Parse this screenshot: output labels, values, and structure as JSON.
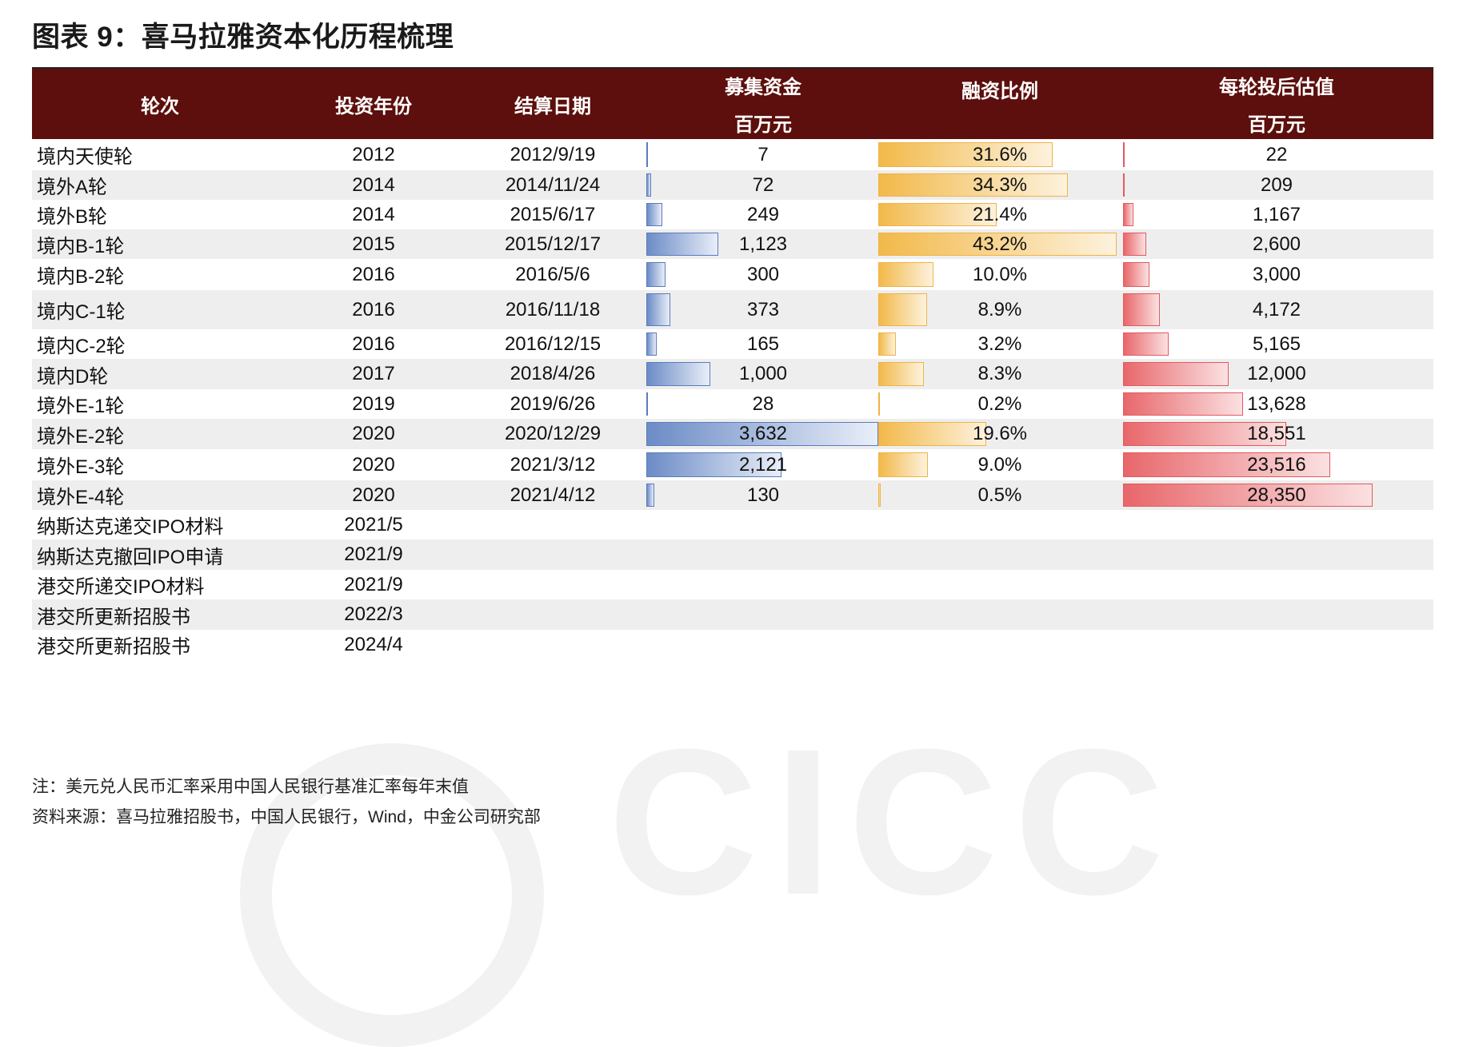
{
  "title": "图表 9：喜马拉雅资本化历程梳理",
  "watermark": "CICC",
  "colors": {
    "header_bg": "#5c0f0c",
    "blue_bar": "#6c8cc6",
    "orange_bar": "#f2b94a",
    "red_bar": "#e8676b"
  },
  "headers": {
    "round": "轮次",
    "year": "投资年份",
    "date": "结算日期",
    "raised": "募集资金",
    "raised_unit": "百万元",
    "ratio": "融资比例",
    "valuation": "每轮投后估值",
    "valuation_unit": "百万元"
  },
  "rows": [
    {
      "round": "境内天使轮",
      "year": "2012",
      "date": "2012/9/19",
      "raised": "7",
      "raised_value": 7,
      "ratio": "31.6%",
      "ratio_value": 31.6,
      "valuation": "22",
      "valuation_value": 22
    },
    {
      "round": "境外A轮",
      "year": "2014",
      "date": "2014/11/24",
      "raised": "72",
      "raised_value": 72,
      "ratio": "34.3%",
      "ratio_value": 34.3,
      "valuation": "209",
      "valuation_value": 209
    },
    {
      "round": "境外B轮",
      "year": "2014",
      "date": "2015/6/17",
      "raised": "249",
      "raised_value": 249,
      "ratio": "21.4%",
      "ratio_value": 21.4,
      "valuation": "1,167",
      "valuation_value": 1167
    },
    {
      "round": "境内B-1轮",
      "year": "2015",
      "date": "2015/12/17",
      "raised": "1,123",
      "raised_value": 1123,
      "ratio": "43.2%",
      "ratio_value": 43.2,
      "valuation": "2,600",
      "valuation_value": 2600
    },
    {
      "round": "境内B-2轮",
      "year": "2016",
      "date": "2016/5/6",
      "raised": "300",
      "raised_value": 300,
      "ratio": "10.0%",
      "ratio_value": 10.0,
      "valuation": "3,000",
      "valuation_value": 3000
    },
    {
      "round": "境内C-1轮",
      "year": "2016",
      "date": "2016/11/18",
      "raised": "373",
      "raised_value": 373,
      "ratio": "8.9%",
      "ratio_value": 8.9,
      "valuation": "4,172",
      "valuation_value": 4172
    },
    {
      "round": "境内C-2轮",
      "year": "2016",
      "date": "2016/12/15",
      "raised": "165",
      "raised_value": 165,
      "ratio": "3.2%",
      "ratio_value": 3.2,
      "valuation": "5,165",
      "valuation_value": 5165
    },
    {
      "round": "境内D轮",
      "year": "2017",
      "date": "2018/4/26",
      "raised": "1,000",
      "raised_value": 1000,
      "ratio": "8.3%",
      "ratio_value": 8.3,
      "valuation": "12,000",
      "valuation_value": 12000
    },
    {
      "round": "境外E-1轮",
      "year": "2019",
      "date": "2019/6/26",
      "raised": "28",
      "raised_value": 28,
      "ratio": "0.2%",
      "ratio_value": 0.2,
      "valuation": "13,628",
      "valuation_value": 13628
    },
    {
      "round": "境外E-2轮",
      "year": "2020",
      "date": "2020/12/29",
      "raised": "3,632",
      "raised_value": 3632,
      "ratio": "19.6%",
      "ratio_value": 19.6,
      "valuation": "18,551",
      "valuation_value": 18551
    },
    {
      "round": "境外E-3轮",
      "year": "2020",
      "date": "2021/3/12",
      "raised": "2,121",
      "raised_value": 2121,
      "ratio": "9.0%",
      "ratio_value": 9.0,
      "valuation": "23,516",
      "valuation_value": 23516
    },
    {
      "round": "境外E-4轮",
      "year": "2020",
      "date": "2021/4/12",
      "raised": "130",
      "raised_value": 130,
      "ratio": "0.5%",
      "ratio_value": 0.5,
      "valuation": "28,350",
      "valuation_value": 28350
    },
    {
      "round": "纳斯达克递交IPO材料",
      "year": "2021/5",
      "date": "",
      "raised": "",
      "ratio": "",
      "valuation": ""
    },
    {
      "round": "纳斯达克撤回IPO申请",
      "year": "2021/9",
      "date": "",
      "raised": "",
      "ratio": "",
      "valuation": ""
    },
    {
      "round": "港交所递交IPO材料",
      "year": "2021/9",
      "date": "",
      "raised": "",
      "ratio": "",
      "valuation": ""
    },
    {
      "round": "港交所更新招股书",
      "year": "2022/3",
      "date": "",
      "raised": "",
      "ratio": "",
      "valuation": ""
    },
    {
      "round": "港交所更新招股书",
      "year": "2024/4",
      "date": "",
      "raised": "",
      "ratio": "",
      "valuation": ""
    }
  ],
  "notes": {
    "note": "注：美元兑人民币汇率采用中国人民银行基准汇率每年末值",
    "source": "资料来源：喜马拉雅招股书，中国人民银行，Wind，中金公司研究部"
  }
}
